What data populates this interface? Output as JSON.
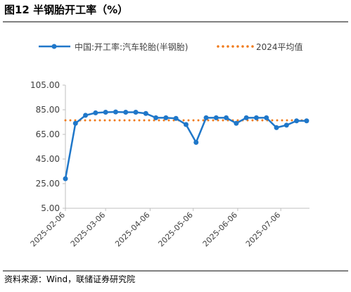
{
  "chart_data": {
    "type": "line",
    "title": "图12 半钢胎开工率（%）",
    "source": "资料来源：Wind，联储证券研究院",
    "x": [
      "2025-02-06",
      "2025-02-13",
      "2025-02-20",
      "2025-02-27",
      "2025-03-06",
      "2025-03-13",
      "2025-03-20",
      "2025-03-27",
      "2025-04-03",
      "2025-04-10",
      "2025-04-17",
      "2025-04-24",
      "2025-05-01",
      "2025-05-08",
      "2025-05-15",
      "2025-05-22",
      "2025-05-29",
      "2025-06-05",
      "2025-06-12",
      "2025-06-19",
      "2025-06-26",
      "2025-07-03",
      "2025-07-10",
      "2025-07-17",
      "2025-07-24"
    ],
    "series": [
      {
        "name": "中国:开工率:汽车轮胎(半钢胎)",
        "color": "#1f77c9",
        "values": [
          29,
          74,
          80.5,
          82.5,
          83,
          83.2,
          83,
          83,
          82,
          78.5,
          78.5,
          78,
          73,
          58.5,
          78.5,
          78.5,
          78.5,
          74,
          78.5,
          78.5,
          78.5,
          70.5,
          72.5,
          76,
          76
        ]
      }
    ],
    "reference_lines": [
      {
        "name": "2024平均值",
        "value": 76.4,
        "color": "#f07a1a"
      }
    ],
    "xlim": [
      "2025-02-06",
      "2025-07-26"
    ],
    "xticks": [
      "2025-02-06",
      "2025-03-06",
      "2025-04-06",
      "2025-05-06",
      "2025-06-06",
      "2025-07-06"
    ],
    "ylim": [
      5,
      105
    ],
    "yticks": [
      {
        "value": 5,
        "label": "5.00"
      },
      {
        "value": 25,
        "label": "25.00"
      },
      {
        "value": 45,
        "label": "45.00"
      },
      {
        "value": 65,
        "label": "65.00"
      },
      {
        "value": 85,
        "label": "85.00"
      },
      {
        "value": 105,
        "label": "105.00"
      }
    ],
    "grid": false
  }
}
